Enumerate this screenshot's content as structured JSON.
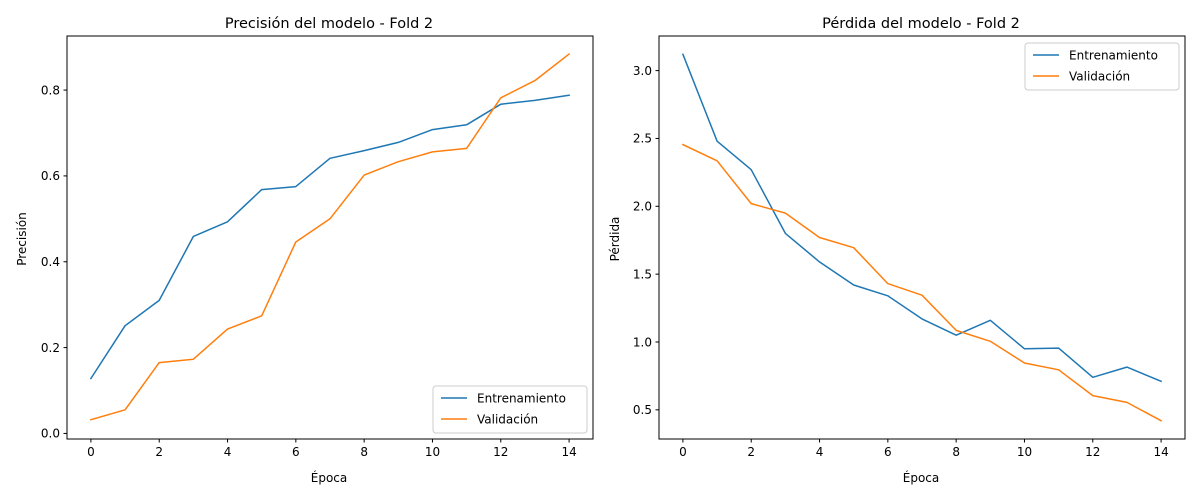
{
  "chart_data": [
    {
      "type": "line",
      "title": "Precisión del modelo - Fold 2",
      "xlabel": "Época",
      "ylabel": "Precisión",
      "x": [
        0,
        1,
        2,
        3,
        4,
        5,
        6,
        7,
        8,
        9,
        10,
        11,
        12,
        13,
        14
      ],
      "xlim": [
        -0.7,
        14.7
      ],
      "ylim": [
        -0.013,
        0.926
      ],
      "xticks": [
        "0",
        "2",
        "4",
        "6",
        "8",
        "10",
        "12",
        "14"
      ],
      "yticks": [
        "0.0",
        "0.2",
        "0.4",
        "0.6",
        "0.8"
      ],
      "legend_position": "lower right",
      "series": [
        {
          "name": "Entrenamiento",
          "color": "#1f77b4",
          "values": [
            0.128,
            0.251,
            0.31,
            0.459,
            0.493,
            0.568,
            0.575,
            0.641,
            0.659,
            0.678,
            0.708,
            0.719,
            0.767,
            0.776,
            0.788
          ]
        },
        {
          "name": "Validación",
          "color": "#ff7f0e",
          "values": [
            0.032,
            0.055,
            0.165,
            0.173,
            0.243,
            0.274,
            0.446,
            0.5,
            0.602,
            0.633,
            0.656,
            0.664,
            0.782,
            0.822,
            0.884
          ]
        }
      ]
    },
    {
      "type": "line",
      "title": "Pérdida del modelo - Fold 2",
      "xlabel": "Época",
      "ylabel": "Pérdida",
      "x": [
        0,
        1,
        2,
        3,
        4,
        5,
        6,
        7,
        8,
        9,
        10,
        11,
        12,
        13,
        14
      ],
      "xlim": [
        -0.7,
        14.7
      ],
      "ylim": [
        0.285,
        3.255
      ],
      "xticks": [
        "0",
        "2",
        "4",
        "6",
        "8",
        "10",
        "12",
        "14"
      ],
      "yticks": [
        "0.5",
        "1.0",
        "1.5",
        "2.0",
        "2.5",
        "3.0"
      ],
      "legend_position": "upper right",
      "series": [
        {
          "name": "Entrenamiento",
          "color": "#1f77b4",
          "values": [
            3.12,
            2.48,
            2.27,
            1.8,
            1.59,
            1.42,
            1.34,
            1.17,
            1.05,
            1.16,
            0.95,
            0.955,
            0.74,
            0.815,
            0.71
          ]
        },
        {
          "name": "Validación",
          "color": "#ff7f0e",
          "values": [
            2.455,
            2.335,
            2.02,
            1.95,
            1.77,
            1.695,
            1.43,
            1.345,
            1.085,
            1.005,
            0.845,
            0.795,
            0.605,
            0.555,
            0.42
          ]
        }
      ]
    }
  ]
}
